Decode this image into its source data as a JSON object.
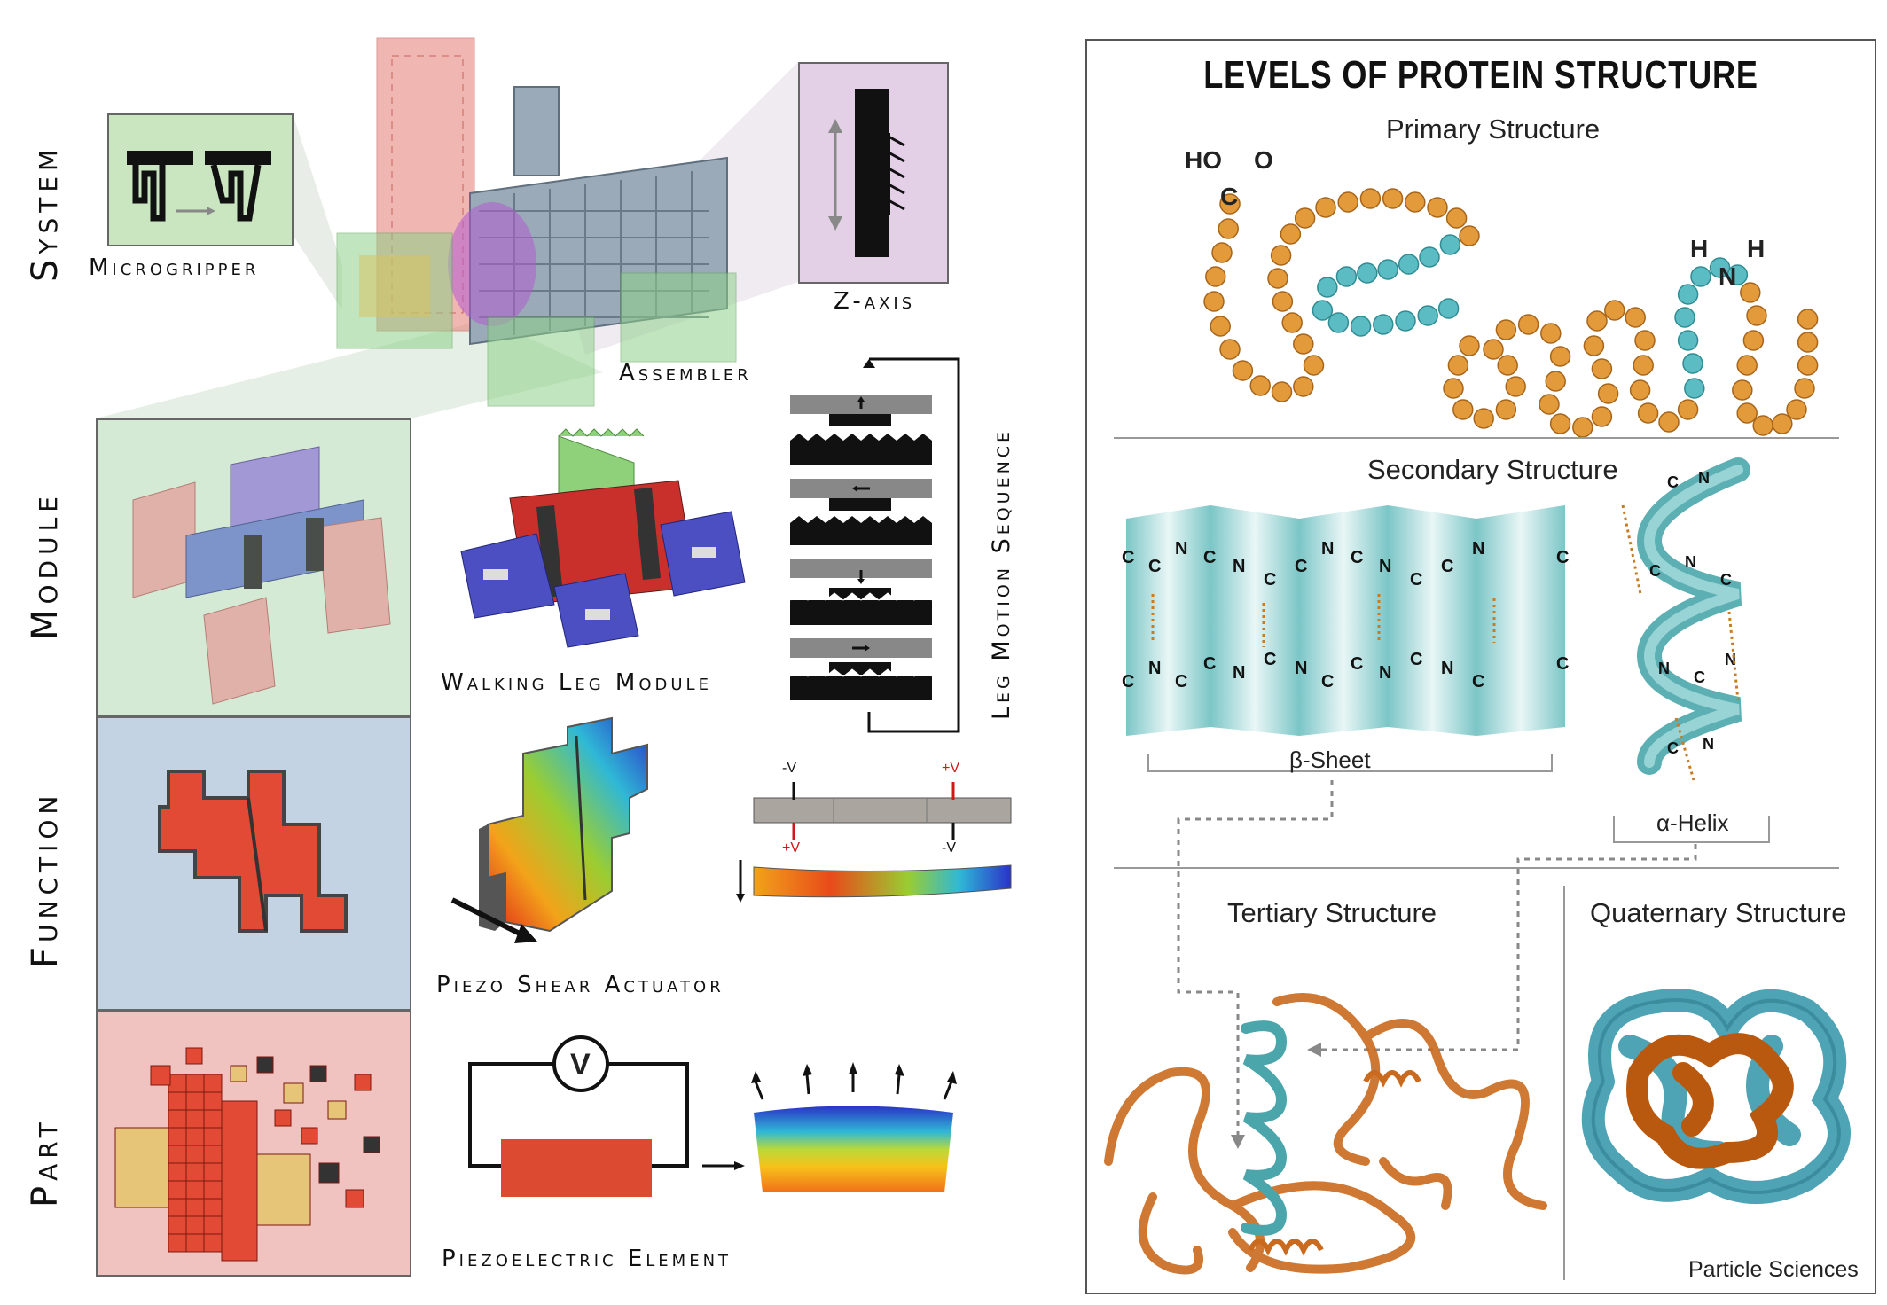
{
  "left": {
    "levels": {
      "system": "System",
      "module": "Module",
      "function": "Function",
      "part": "Part"
    },
    "captions": {
      "microgripper": "Microgripper",
      "zaxis": "Z-axis",
      "assembler": "Assembler",
      "walking_leg": "Walking Leg Module",
      "leg_motion": "Leg Motion Sequence",
      "piezo_shear": "Piezo Shear Actuator",
      "piezoelectric": "Piezoelectric Element"
    },
    "voltage_labels": {
      "minus_v": "-V",
      "plus_v": "+V",
      "voltmeter": "V"
    }
  },
  "right": {
    "title": "LEVELS OF PROTEIN STRUCTURE",
    "primary": "Primary Structure",
    "secondary": "Secondary Structure",
    "beta_sheet": "β-Sheet",
    "alpha_helix": "α-Helix",
    "tertiary": "Tertiary Structure",
    "quaternary": "Quaternary Structure",
    "credit": "Particle Sciences",
    "carboxyl": {
      "ho": "HO",
      "o": "O",
      "c": "C"
    },
    "amine": {
      "h1": "H",
      "h2": "H",
      "n": "N"
    }
  },
  "colors": {
    "orange_bead": "#e39a3a",
    "teal_bead": "#5cbcc4",
    "teal_ribbon": "#4aa6aa",
    "brown_ribbon": "#c96a1e",
    "system_green": "#c9e6c0",
    "zaxis_purple": "#e3cfe6",
    "function_blue": "#c3d3e3",
    "part_pink": "#f1c3c0",
    "actuator_red": "#e24a35"
  }
}
